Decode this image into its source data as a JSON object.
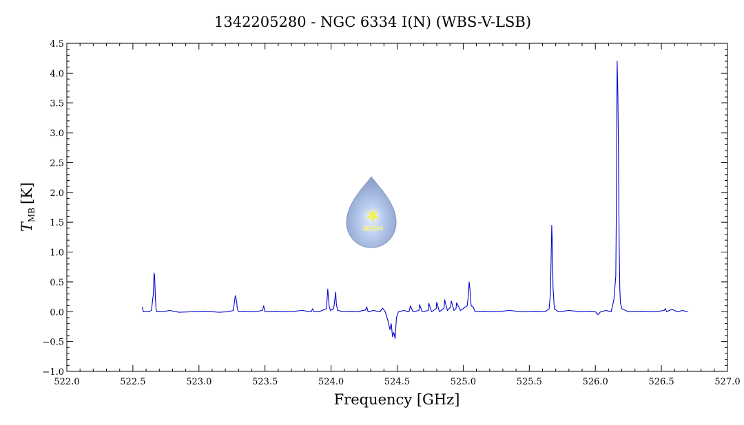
{
  "chart_data": {
    "type": "line",
    "title": "1342205280 - NGC 6334 I(N) (WBS-V-LSB)",
    "xlabel": "Frequency [GHz]",
    "ylabel_main": "T",
    "ylabel_sub": "MB",
    "ylabel_unit": "[K]",
    "xlim": [
      522.0,
      527.0
    ],
    "ylim": [
      -1.0,
      4.5
    ],
    "x_ticks": [
      522.0,
      522.5,
      523.0,
      523.5,
      524.0,
      524.5,
      525.0,
      525.5,
      526.0,
      526.5,
      527.0
    ],
    "x_tick_labels": [
      "522.0",
      "522.5",
      "523.0",
      "523.5",
      "524.0",
      "524.5",
      "525.0",
      "525.5",
      "526.0",
      "526.5",
      "527.0"
    ],
    "y_ticks": [
      -1.0,
      -0.5,
      0.0,
      0.5,
      1.0,
      1.5,
      2.0,
      2.5,
      3.0,
      3.5,
      4.0,
      4.5
    ],
    "y_tick_labels": [
      "−1.0",
      "−0.5",
      "0.0",
      "0.5",
      "1.0",
      "1.5",
      "2.0",
      "2.5",
      "3.0",
      "3.5",
      "4.0",
      "4.5"
    ],
    "series": [
      {
        "color": "#0000cc",
        "x": [
          522.57,
          522.58,
          522.6,
          522.62,
          522.64,
          522.655,
          522.66,
          522.665,
          522.67,
          522.675,
          522.68,
          522.69,
          522.72,
          522.78,
          522.85,
          522.95,
          523.05,
          523.15,
          523.22,
          523.26,
          523.275,
          523.285,
          523.29,
          523.3,
          523.34,
          523.42,
          523.48,
          523.49,
          523.5,
          523.58,
          523.68,
          523.78,
          523.85,
          523.86,
          523.87,
          523.92,
          523.965,
          523.975,
          523.985,
          523.995,
          524.02,
          524.035,
          524.04,
          524.05,
          524.1,
          524.15,
          524.2,
          524.26,
          524.27,
          524.28,
          524.32,
          524.37,
          524.39,
          524.41,
          524.43,
          524.445,
          524.455,
          524.465,
          524.475,
          524.485,
          524.495,
          524.51,
          524.55,
          524.59,
          524.6,
          524.62,
          524.665,
          524.67,
          524.69,
          524.735,
          524.74,
          524.76,
          524.795,
          524.8,
          524.82,
          524.855,
          524.86,
          524.88,
          524.905,
          524.91,
          524.93,
          524.945,
          524.95,
          524.98,
          525.03,
          525.04,
          525.045,
          525.05,
          525.06,
          525.075,
          525.09,
          525.15,
          525.25,
          525.35,
          525.45,
          525.55,
          525.62,
          525.65,
          525.66,
          525.67,
          525.675,
          525.68,
          525.69,
          525.72,
          525.8,
          525.9,
          525.96,
          526.0,
          526.02,
          526.04,
          526.08,
          526.12,
          526.14,
          526.155,
          526.16,
          526.165,
          526.17,
          526.175,
          526.18,
          526.185,
          526.19,
          526.2,
          526.25,
          526.35,
          526.45,
          526.52,
          526.53,
          526.54,
          526.58,
          526.62,
          526.66,
          526.7
        ],
        "y": [
          0.08,
          0.0,
          0.01,
          0.0,
          0.02,
          0.3,
          0.65,
          0.6,
          0.25,
          0.05,
          0.0,
          0.01,
          0.0,
          0.02,
          -0.01,
          0.0,
          0.01,
          -0.01,
          0.0,
          0.02,
          0.27,
          0.18,
          0.05,
          0.0,
          0.01,
          0.0,
          0.02,
          0.1,
          0.0,
          0.01,
          0.0,
          0.02,
          0.0,
          0.05,
          0.0,
          0.01,
          0.05,
          0.38,
          0.1,
          0.02,
          0.05,
          0.33,
          0.12,
          0.02,
          0.0,
          0.01,
          0.0,
          0.03,
          0.08,
          0.0,
          0.02,
          0.0,
          0.06,
          0.0,
          -0.15,
          -0.3,
          -0.2,
          -0.42,
          -0.35,
          -0.45,
          -0.1,
          0.0,
          0.02,
          0.0,
          0.1,
          0.0,
          0.02,
          0.12,
          0.0,
          0.02,
          0.14,
          0.0,
          0.05,
          0.16,
          0.0,
          0.06,
          0.2,
          0.02,
          0.08,
          0.18,
          0.02,
          0.05,
          0.15,
          0.02,
          0.1,
          0.3,
          0.5,
          0.4,
          0.1,
          0.08,
          0.0,
          0.01,
          0.0,
          0.02,
          0.0,
          0.01,
          0.0,
          0.05,
          0.3,
          1.45,
          1.1,
          0.4,
          0.05,
          0.0,
          0.02,
          0.0,
          0.01,
          0.0,
          -0.05,
          0.0,
          0.02,
          0.0,
          0.2,
          0.6,
          2.0,
          4.2,
          3.7,
          2.7,
          1.2,
          0.4,
          0.15,
          0.05,
          0.0,
          0.01,
          0.0,
          0.02,
          0.05,
          0.0,
          0.04,
          0.0,
          0.02,
          0.0
        ]
      }
    ]
  },
  "logo": {
    "text": "WISH",
    "colors": {
      "drop": "#9fb2d8",
      "glow": "#d8e6ff",
      "star": "#f5f06a"
    }
  }
}
